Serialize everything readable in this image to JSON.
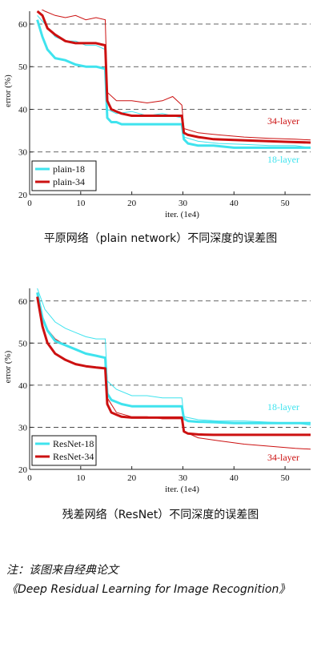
{
  "chart_data": [
    {
      "type": "line",
      "xlabel": "iter. (1e4)",
      "ylabel": "error (%)",
      "xlim": [
        0,
        55
      ],
      "ylim": [
        20,
        63
      ],
      "x_ticks": [
        "0",
        "10",
        "20",
        "30",
        "40",
        "50"
      ],
      "y_ticks": [
        "20",
        "30",
        "40",
        "50",
        "60"
      ],
      "grid": "dashed horizontal",
      "legend": "bottom-left",
      "series": [
        {
          "name": "plain-18",
          "color": "#3fe3ee",
          "annotation": "18-layer",
          "train_x": [
            1.5,
            2.5,
            3.5,
            5,
            7,
            9,
            11,
            13,
            14.8,
            15.2,
            16,
            17,
            18,
            20,
            22,
            25,
            28,
            29.8,
            30.2,
            31,
            33,
            36,
            40,
            45,
            50,
            55
          ],
          "train_y": [
            61,
            57,
            54,
            52,
            51.5,
            50.5,
            50,
            50,
            49.5,
            38,
            37,
            37,
            36.5,
            36.5,
            36.5,
            36.5,
            36.5,
            36.5,
            33,
            32,
            31.5,
            31.5,
            31,
            31,
            31,
            31
          ],
          "val_x": [
            1.5,
            3,
            5,
            7,
            9,
            11,
            13,
            14.8,
            15.2,
            17,
            20,
            23,
            26,
            29.8,
            30.2,
            33,
            37,
            42,
            47,
            52,
            55
          ],
          "val_y": [
            62,
            60,
            57,
            56,
            56,
            55,
            55,
            54,
            40,
            39,
            39.5,
            38.5,
            39,
            38,
            33.5,
            32.5,
            32,
            31.8,
            31.5,
            31.5,
            31
          ],
          "final_train": 31.0,
          "final_val": 31.0
        },
        {
          "name": "plain-34",
          "color": "#cc1111",
          "annotation": "34-layer",
          "train_x": [
            1.5,
            2.5,
            3.5,
            5,
            7,
            9,
            11,
            13,
            14.8,
            15.2,
            16,
            17,
            18,
            20,
            22,
            25,
            28,
            29.8,
            30.2,
            31,
            33,
            36,
            40,
            45,
            50,
            55
          ],
          "train_y": [
            63,
            62,
            59,
            57.5,
            56,
            55.5,
            55.5,
            55.5,
            55,
            42,
            40,
            39.5,
            39,
            38.5,
            38.5,
            38.5,
            38.5,
            38.5,
            34.5,
            34,
            33.5,
            33,
            32.8,
            32.6,
            32.4,
            32.2
          ],
          "val_x": [
            1.5,
            3,
            5,
            7,
            9,
            11,
            13,
            14.8,
            15.2,
            17,
            20,
            23,
            26,
            28,
            29.8,
            30.2,
            33,
            37,
            42,
            47,
            52,
            55
          ],
          "val_y": [
            64,
            63,
            62,
            61.5,
            62,
            61,
            61.5,
            61,
            44,
            42,
            42,
            41.5,
            42,
            43,
            41,
            35.5,
            34.5,
            34,
            33.5,
            33.2,
            33,
            32.8
          ],
          "final_train": 32.2,
          "final_val": 32.8
        }
      ]
    },
    {
      "type": "line",
      "xlabel": "iter. (1e4)",
      "ylabel": "error (%)",
      "xlim": [
        0,
        55
      ],
      "ylim": [
        20,
        63
      ],
      "x_ticks": [
        "0",
        "10",
        "20",
        "30",
        "40",
        "50"
      ],
      "y_ticks": [
        "20",
        "30",
        "40",
        "50",
        "60"
      ],
      "grid": "dashed horizontal",
      "legend": "bottom-left",
      "series": [
        {
          "name": "ResNet-18",
          "color": "#3fe3ee",
          "annotation": "18-layer",
          "train_x": [
            1.5,
            2.5,
            3.5,
            5,
            7,
            9,
            11,
            13,
            14.8,
            15.2,
            16,
            17,
            18,
            20,
            22,
            25,
            28,
            29.8,
            30.2,
            31,
            33,
            36,
            40,
            45,
            50,
            55
          ],
          "train_y": [
            62,
            56,
            53,
            50.5,
            49.5,
            48.5,
            47.5,
            47,
            46.5,
            38,
            36.5,
            36,
            35.5,
            35,
            35,
            35,
            35,
            35,
            32,
            31.5,
            31.3,
            31.2,
            31,
            31,
            31,
            31
          ],
          "val_x": [
            1.5,
            3,
            5,
            7,
            9,
            11,
            13,
            14.8,
            15.2,
            17,
            20,
            23,
            26,
            29.8,
            30.2,
            33,
            37,
            42,
            47,
            52,
            55
          ],
          "val_y": [
            63,
            58,
            55,
            53.5,
            52.5,
            51.5,
            51,
            51,
            41,
            39,
            37.5,
            37.5,
            37,
            37,
            32.5,
            31.8,
            31.5,
            31.5,
            31.2,
            31,
            30.5
          ],
          "final_train": 31.0,
          "final_val": 30.5
        },
        {
          "name": "ResNet-34",
          "color": "#cc1111",
          "annotation": "34-layer",
          "train_x": [
            1.5,
            2.5,
            3.5,
            5,
            7,
            9,
            11,
            13,
            14.8,
            15.2,
            16,
            17,
            18,
            20,
            22,
            25,
            28,
            29.8,
            30.2,
            31,
            33,
            36,
            40,
            45,
            50,
            55
          ],
          "train_y": [
            61,
            54,
            50,
            47.5,
            46,
            45,
            44.5,
            44.2,
            44,
            35.5,
            33.5,
            33,
            32.5,
            32.3,
            32.3,
            32.3,
            32.3,
            32.3,
            29,
            28.5,
            28.3,
            28.2,
            28.2,
            28.2,
            28.2,
            28.2
          ],
          "val_x": [
            1.5,
            3,
            5,
            7,
            9,
            11,
            13,
            14.8,
            15.2,
            17,
            20,
            23,
            26,
            29.8,
            30.2,
            33,
            37,
            42,
            47,
            52,
            55
          ],
          "val_y": [
            62,
            54,
            51,
            49.5,
            48.5,
            47.5,
            47,
            46.5,
            37,
            33.5,
            32.5,
            32.5,
            32,
            32,
            29,
            27.5,
            26.8,
            26,
            25.5,
            25,
            24.8
          ],
          "final_train": 28.2,
          "final_val": 24.8
        }
      ]
    }
  ],
  "captions": [
    "平原网络（plain network）不同深度的误差图",
    "残差网络（ResNet）不同深度的误差图"
  ],
  "note": {
    "line1": "注：该图来自经典论文",
    "line2": "《Deep Residual Learning for Image Recognition》"
  }
}
